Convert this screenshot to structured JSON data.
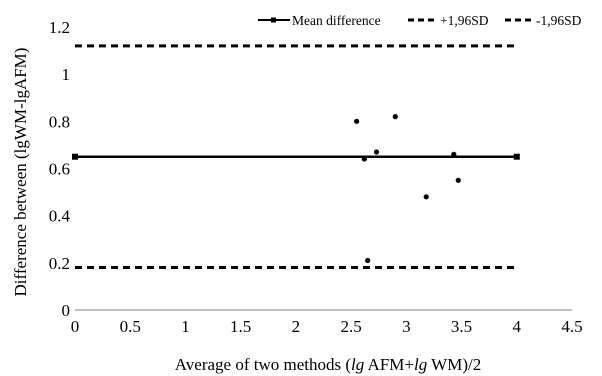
{
  "chart_data": {
    "type": "scatter",
    "title": "",
    "xlabel": "Average of two methods (lg AFM+lg WM)/2",
    "xlabel_parts": [
      "Average of two methods (",
      "lg",
      " AFM+",
      "lg",
      " WM)/2"
    ],
    "ylabel": "Difference between (lgWM-lgAFM)",
    "xlim": [
      0,
      4.5
    ],
    "ylim": [
      0,
      1.2
    ],
    "x_ticks": [
      "0",
      "0.5",
      "1",
      "1.5",
      "2",
      "2.5",
      "3",
      "3.5",
      "4",
      "4.5"
    ],
    "y_ticks": [
      "0",
      "0.2",
      "0.4",
      "0.6",
      "0.8",
      "1",
      "1.2"
    ],
    "grid": false,
    "legend_position": "top-right",
    "series": [
      {
        "name": "",
        "kind": "points",
        "x": [
          2.55,
          2.62,
          2.65,
          2.73,
          2.9,
          3.18,
          3.43,
          3.47
        ],
        "y": [
          0.8,
          0.64,
          0.21,
          0.67,
          0.82,
          0.48,
          0.66,
          0.55
        ]
      },
      {
        "name": "Mean difference",
        "kind": "hline",
        "y": 0.65,
        "x_range": [
          0,
          4
        ],
        "style": "solid",
        "markers": true
      },
      {
        "name": "+1,96SD",
        "kind": "hline",
        "y": 1.12,
        "x_range": [
          0,
          4
        ],
        "style": "dashed"
      },
      {
        "name": "-1,96SD",
        "kind": "hline",
        "y": 0.18,
        "x_range": [
          0,
          4
        ],
        "style": "dashed"
      }
    ]
  }
}
